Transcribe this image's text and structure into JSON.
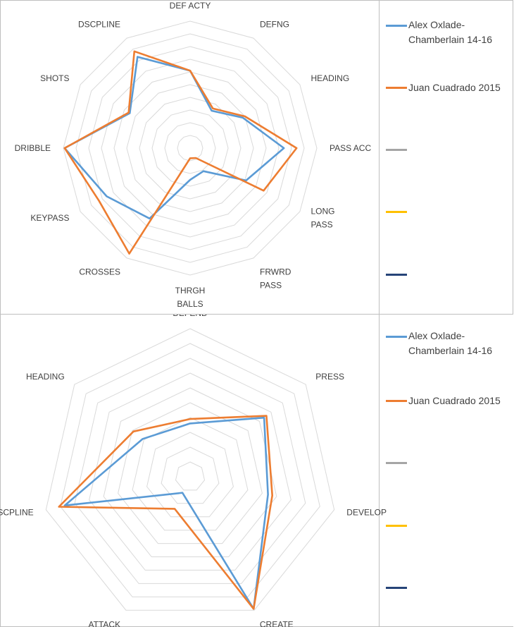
{
  "chart_data": [
    {
      "type": "radar",
      "axes": [
        "DEF ACTY",
        "DEFNG",
        "HEADING",
        "PASS ACC",
        "LONG PASS",
        "FRWRD PASS",
        "THRGH BALLS",
        "CROSSES",
        "KEYPASS",
        "DRIBBLE",
        "SHOTS",
        "DSCPLINE"
      ],
      "axis_label_lines": [
        [
          "DEF ACTY"
        ],
        [
          "DEFNG"
        ],
        [
          "HEADING"
        ],
        [
          "PASS ACC"
        ],
        [
          "LONG",
          "PASS"
        ],
        [
          "FRWRD",
          "PASS"
        ],
        [
          "THRGH",
          "BALLS"
        ],
        [
          "CROSSES"
        ],
        [
          "KEYPASS"
        ],
        [
          "DRIBBLE"
        ],
        [
          "SHOTS"
        ],
        [
          "DSCPLINE"
        ]
      ],
      "rings": 10,
      "range": [
        0,
        10
      ],
      "grid": true,
      "legend_position": "right",
      "series": [
        {
          "name": "Alex Oxlade-Chamberlain 14-16",
          "color": "#5b9bd5",
          "values": [
            6.1,
            3.4,
            4.8,
            7.4,
            5.1,
            2.1,
            2.5,
            6.4,
            7.6,
            9.9,
            5.5,
            8.3
          ]
        },
        {
          "name": "Juan Cuadrado 2015",
          "color": "#ed7d31",
          "values": [
            6.1,
            3.6,
            5.0,
            8.4,
            6.7,
            0.9,
            0.8,
            9.6,
            8.3,
            9.9,
            5.6,
            8.8
          ]
        },
        {
          "name": "",
          "color": "#a5a5a5",
          "values": []
        },
        {
          "name": "",
          "color": "#ffc000",
          "values": []
        },
        {
          "name": "",
          "color": "#264478",
          "values": []
        }
      ]
    },
    {
      "type": "radar",
      "axes": [
        "DEFEND",
        "PRESS",
        "DEVELOP",
        "CREATE",
        "ATTACK",
        "DSCPLINE",
        "HEADING"
      ],
      "axis_label_lines": [
        [
          "DEFEND"
        ],
        [
          "PRESS"
        ],
        [
          "DEVELOP"
        ],
        [
          "CREATE"
        ],
        [
          "ATTACK"
        ],
        [
          "DSCPLINE"
        ],
        [
          "HEADING"
        ]
      ],
      "rings": 10,
      "range": [
        0,
        10
      ],
      "grid": true,
      "legend_position": "right",
      "series": [
        {
          "name": "Alex Oxlade-Chamberlain 14-16",
          "color": "#5b9bd5",
          "values": [
            3.6,
            6.4,
            5.4,
            9.9,
            1.2,
            8.7,
            4.1
          ]
        },
        {
          "name": "Juan Cuadrado 2015",
          "color": "#ed7d31",
          "values": [
            3.9,
            6.6,
            5.7,
            9.9,
            2.4,
            9.1,
            4.9
          ]
        },
        {
          "name": "",
          "color": "#a5a5a5",
          "values": []
        },
        {
          "name": "",
          "color": "#ffc000",
          "values": []
        },
        {
          "name": "",
          "color": "#264478",
          "values": []
        }
      ]
    }
  ]
}
